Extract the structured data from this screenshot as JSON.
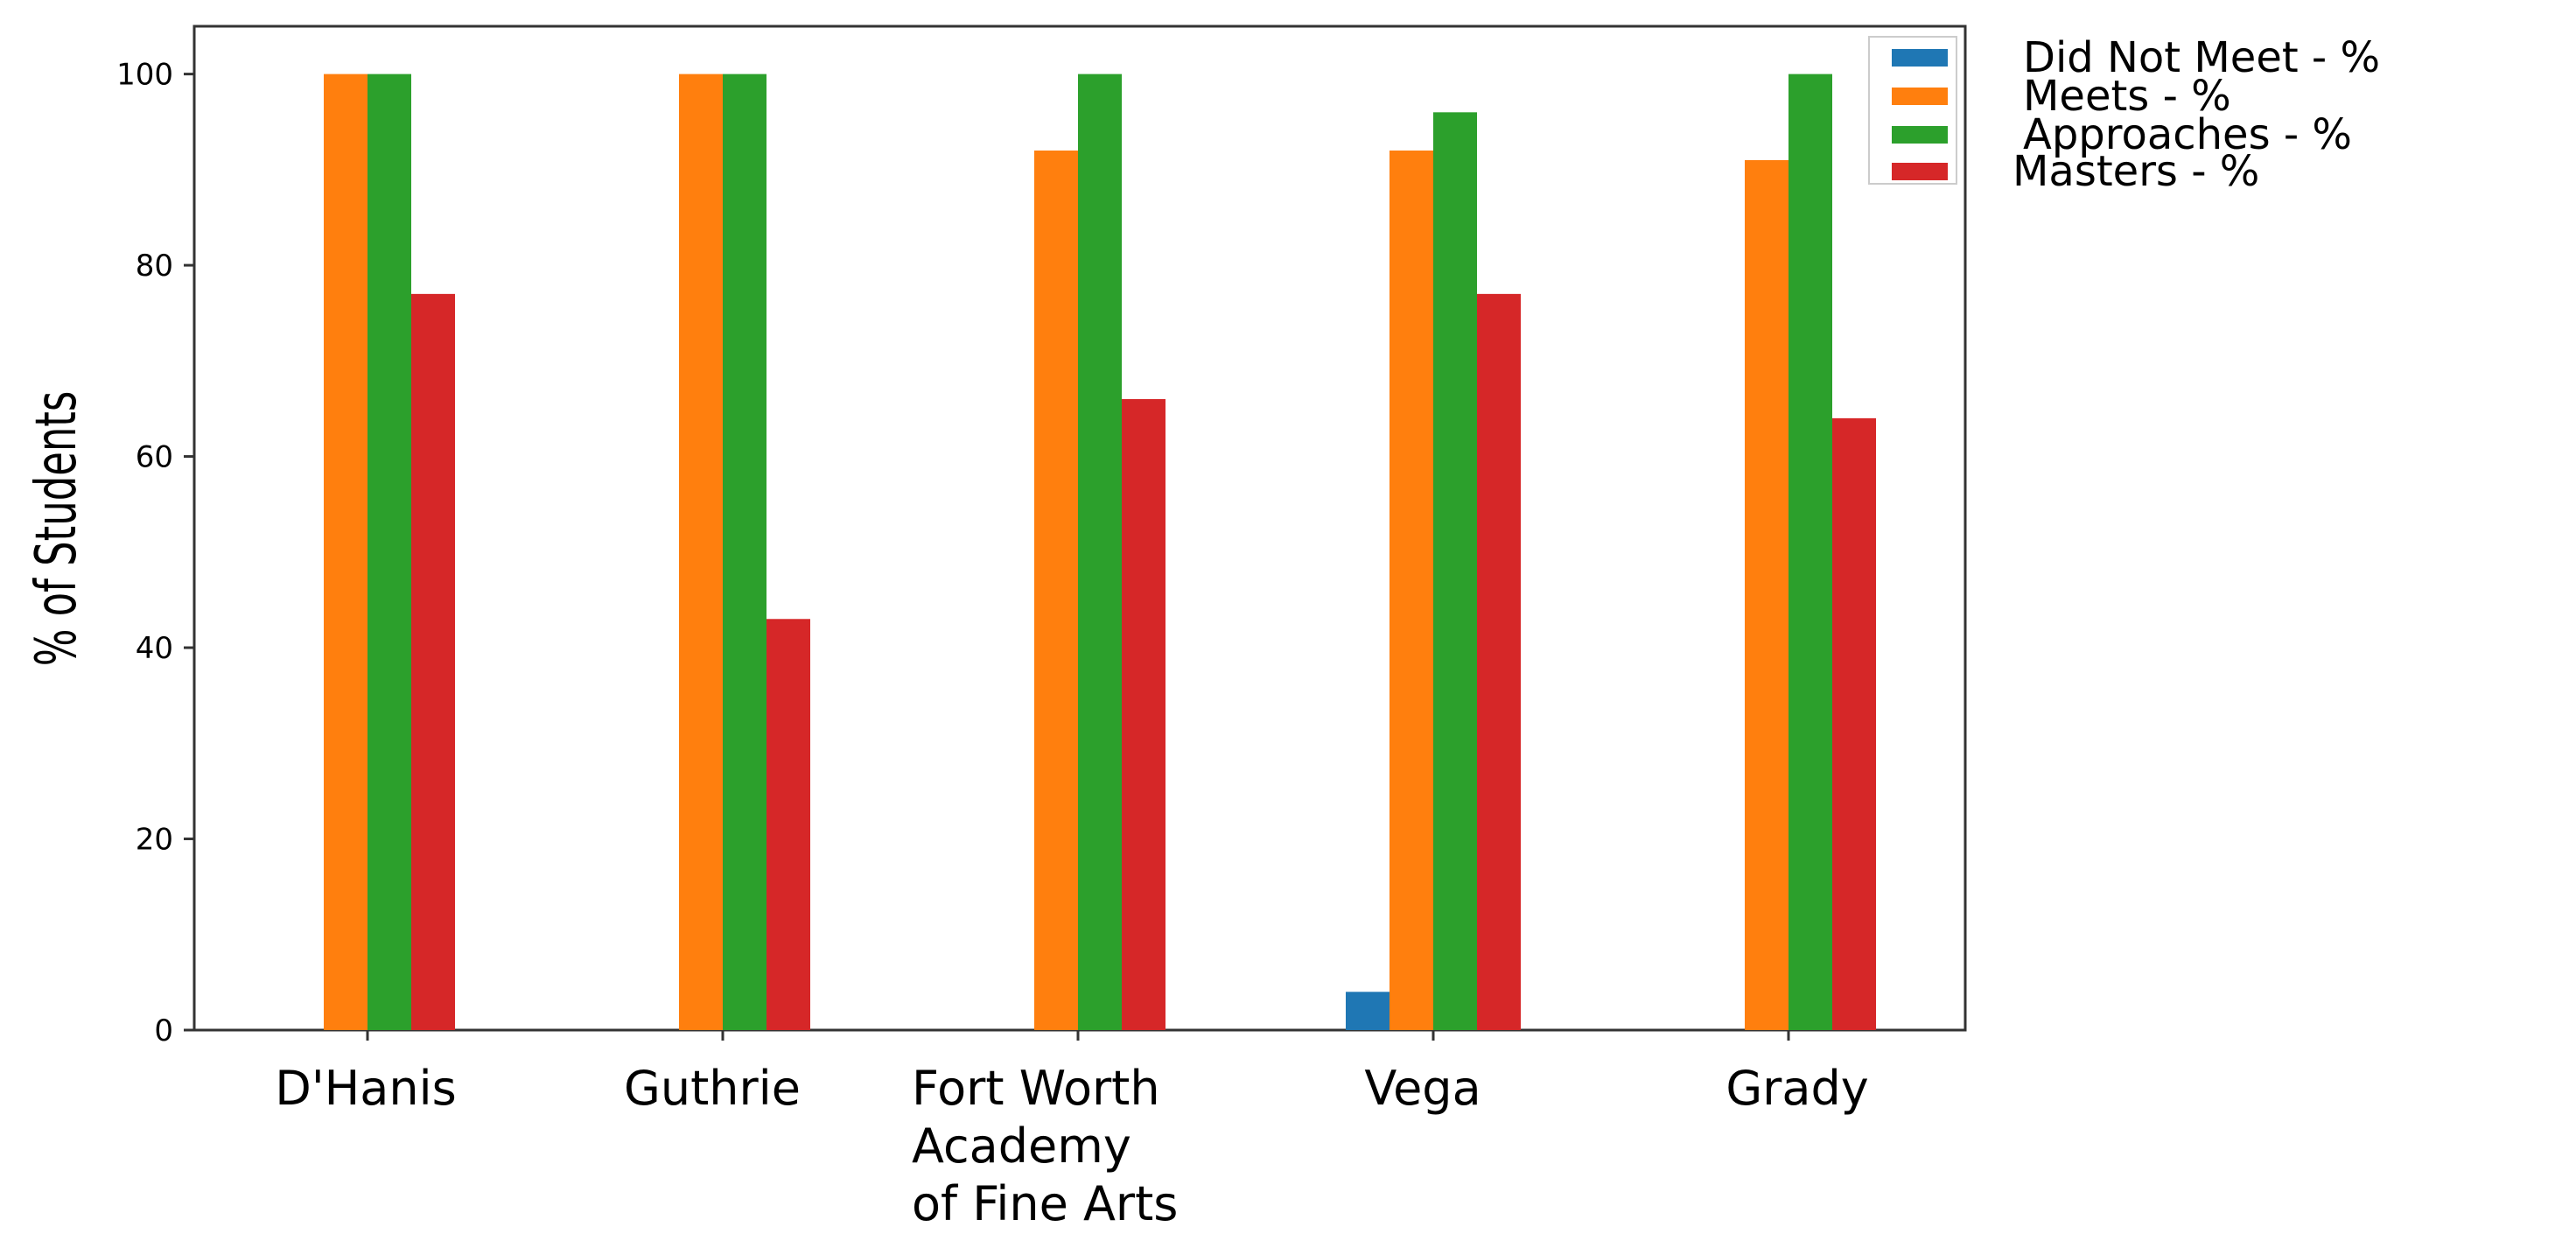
{
  "chart_data": {
    "type": "bar",
    "title": "",
    "xlabel": "",
    "ylabel": "% of Students",
    "ylim": [
      0,
      105
    ],
    "yticks": [
      0,
      20,
      40,
      60,
      80,
      100
    ],
    "grid": false,
    "legend_position": "top-right",
    "categories": [
      [
        "D'Hanis"
      ],
      [
        "Guthrie"
      ],
      [
        "Fort Worth",
        "Academy",
        "of Fine Arts"
      ],
      [
        "Vega"
      ],
      [
        "Grady"
      ]
    ],
    "series": [
      {
        "name": "Did Not Meet - %",
        "color": "#1f77b4",
        "values": [
          0,
          0,
          0,
          4,
          0
        ]
      },
      {
        "name": "Meets - %",
        "color": "#ff7f0e",
        "values": [
          100,
          100,
          92,
          92,
          91
        ]
      },
      {
        "name": "Approaches - %",
        "color": "#2ca02c",
        "values": [
          100,
          100,
          100,
          96,
          100
        ]
      },
      {
        "name": "Masters - %",
        "color": "#d62728",
        "values": [
          77,
          43,
          66,
          77,
          64
        ]
      }
    ]
  }
}
